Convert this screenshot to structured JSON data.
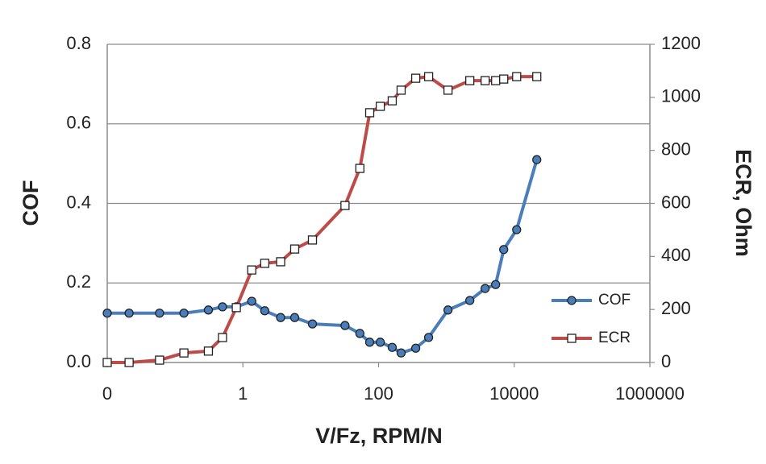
{
  "chart_data": {
    "type": "line",
    "x_label": "V/Fz, RPM/N",
    "y_label": "COF",
    "y2_label": "ECR, Ohm",
    "log_x": true,
    "grid": true,
    "legend": "right",
    "xlim": [
      0.01,
      1000000
    ],
    "xticks": [
      {
        "value": 0.01,
        "label": "0"
      },
      1,
      100,
      10000,
      1000000
    ],
    "ylim": [
      0,
      0.8
    ],
    "yticks": [
      {
        "value": 0,
        "label": "0.0"
      },
      0.2,
      0.4,
      0.6,
      0.8
    ],
    "y2lim": [
      0,
      1200
    ],
    "y2ticks": [
      0,
      200,
      400,
      600,
      800,
      1000,
      1200
    ],
    "x": [
      0.01,
      0.021,
      0.059,
      0.135,
      0.31,
      0.5,
      0.8,
      1.35,
      2.1,
      3.6,
      5.8,
      10.6,
      32,
      53,
      74,
      106,
      159,
      215,
      353,
      547,
      1056,
      2214,
      3724,
      5320,
      7000,
      10860,
      21500
    ],
    "series": [
      {
        "name": "COF",
        "color": "#4a7ebb",
        "marker": "circle",
        "values": [
          0.124,
          0.124,
          0.124,
          0.124,
          0.132,
          0.14,
          0.14,
          0.154,
          0.13,
          0.113,
          0.113,
          0.097,
          0.093,
          0.073,
          0.051,
          0.051,
          0.038,
          0.024,
          0.036,
          0.063,
          0.132,
          0.156,
          0.186,
          0.196,
          0.284,
          0.334,
          0.51
        ]
      },
      {
        "name": "ECR",
        "color": "#be4b48",
        "marker": "square",
        "axis": "y2",
        "values": [
          0,
          0,
          9,
          36,
          43,
          94,
          207,
          349,
          374,
          380,
          428,
          462,
          592,
          732,
          942,
          966,
          987,
          1027,
          1072,
          1078,
          1027,
          1063,
          1063,
          1063,
          1069,
          1078,
          1078
        ]
      }
    ]
  }
}
